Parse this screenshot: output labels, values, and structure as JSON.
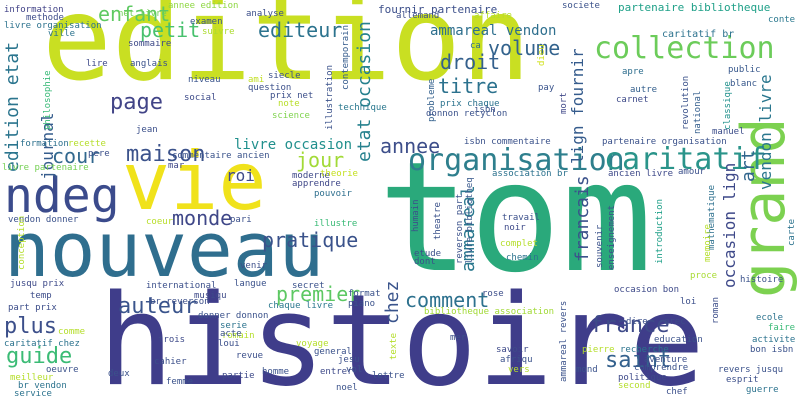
{
  "words": [
    {
      "text": "edition",
      "color": "#c9df22"
    },
    {
      "text": "tom",
      "color": "#2aa97b"
    },
    {
      "text": "histoire",
      "color": "#3f3d8a"
    },
    {
      "text": "nouveau",
      "color": "#2f6e8e"
    },
    {
      "text": "vie",
      "color": "#f0e21b"
    },
    {
      "text": "grand",
      "color": "#7cd150"
    },
    {
      "text": "ndeg",
      "color": "#3b4b8c"
    },
    {
      "text": "organisation",
      "color": "#2e7f8d"
    },
    {
      "text": "caritatif",
      "color": "#2a948a"
    },
    {
      "text": "collection",
      "color": "#6ccc5a"
    },
    {
      "text": "page",
      "color": "#414487"
    },
    {
      "text": "maison",
      "color": "#3b528b"
    },
    {
      "text": "france",
      "color": "#3e4a89"
    },
    {
      "text": "saint",
      "color": "#34618d"
    },
    {
      "text": "auteur",
      "color": "#3a548c"
    },
    {
      "text": "plus",
      "color": "#3c4f8a"
    },
    {
      "text": "guide",
      "color": "#3bbb75"
    },
    {
      "text": "monde",
      "color": "#3f4788"
    },
    {
      "text": "pratique",
      "color": "#3a528b"
    },
    {
      "text": "comment",
      "color": "#2d718e"
    },
    {
      "text": "premier",
      "color": "#5dc863"
    },
    {
      "text": "enfant",
      "color": "#5ec962"
    },
    {
      "text": "petit",
      "color": "#48c16e"
    },
    {
      "text": "editeur",
      "color": "#2c738e"
    },
    {
      "text": "titre",
      "color": "#2c728e"
    },
    {
      "text": "volume",
      "color": "#33638d"
    },
    {
      "text": "droit",
      "color": "#34608d"
    },
    {
      "text": "annee",
      "color": "#3d4e8a"
    },
    {
      "text": "jour",
      "color": "#a2da37"
    },
    {
      "text": "cour",
      "color": "#31688e"
    },
    {
      "text": "chez",
      "color": "#3a548c"
    },
    {
      "text": "ammareal vendon",
      "color": "#2e6f8e"
    },
    {
      "text": "ammareal",
      "color": "#2a788e"
    },
    {
      "text": "francais",
      "color": "#3b528b"
    },
    {
      "text": "art",
      "color": "#31668e"
    },
    {
      "text": "edition etat",
      "color": "#2b758e"
    },
    {
      "text": "etat occasion",
      "color": "#26818e"
    },
    {
      "text": "livre occasion",
      "color": "#21908d"
    },
    {
      "text": "vendon livre",
      "color": "#2a778e"
    },
    {
      "text": "lign fournir",
      "color": "#365c8d"
    },
    {
      "text": "occasion lign",
      "color": "#3e4989"
    },
    {
      "text": "journal",
      "color": "#365d8d"
    },
    {
      "text": "roi",
      "color": "#3e4a89"
    },
    {
      "text": "fournir partenaire",
      "color": "#3c4f8a"
    },
    {
      "text": "partenaire bibliotheque",
      "color": "#1fa088"
    },
    {
      "text": "caritatif br",
      "color": "#2c728e"
    },
    {
      "text": "livre partenaire",
      "color": "#75d054"
    },
    {
      "text": "information",
      "color": "#414287"
    },
    {
      "text": "methode",
      "color": "#3e4c8a"
    },
    {
      "text": "livre organisation",
      "color": "#2c728e"
    },
    {
      "text": "ville",
      "color": "#2c738e"
    },
    {
      "text": "annee edition",
      "color": "#8fd744"
    },
    {
      "text": "net livre",
      "color": "#70cf57"
    },
    {
      "text": "examen",
      "color": "#3a548c"
    },
    {
      "text": "suivre",
      "color": "#addc30"
    },
    {
      "text": "sommaire",
      "color": "#3e4a89"
    },
    {
      "text": "analyse",
      "color": "#3c4f8a"
    },
    {
      "text": "contemporain",
      "color": "#365c8d"
    },
    {
      "text": "allemand",
      "color": "#3d4e8a"
    },
    {
      "text": "affaire",
      "color": "#b5de2b"
    },
    {
      "text": "ca",
      "color": "#2e6e8e"
    },
    {
      "text": "dieu",
      "color": "#d0e11c"
    },
    {
      "text": "societe",
      "color": "#3b528b"
    },
    {
      "text": "conte",
      "color": "#2a788e"
    },
    {
      "text": "lire",
      "color": "#3e4a89"
    },
    {
      "text": "anglais",
      "color": "#3b528b"
    },
    {
      "text": "niveau",
      "color": "#3a548c"
    },
    {
      "text": "social",
      "color": "#3e4c8a"
    },
    {
      "text": "ami",
      "color": "#c2df23"
    },
    {
      "text": "siecle",
      "color": "#3c508b"
    },
    {
      "text": "illustration",
      "color": "#3b528b"
    },
    {
      "text": "prix net",
      "color": "#3c4f8a"
    },
    {
      "text": "question",
      "color": "#3c508b"
    },
    {
      "text": "note",
      "color": "#b8de29"
    },
    {
      "text": "science",
      "color": "#7fd34e"
    },
    {
      "text": "technique",
      "color": "#2a788e"
    },
    {
      "text": "probleme",
      "color": "#34618d"
    },
    {
      "text": "prix chaque",
      "color": "#2c738e"
    },
    {
      "text": "donnon recyclon",
      "color": "#3b528b"
    },
    {
      "text": "pay",
      "color": "#3a548c"
    },
    {
      "text": "mort",
      "color": "#3f4788"
    },
    {
      "text": "apre",
      "color": "#2e6e8e"
    },
    {
      "text": "autre",
      "color": "#35608d"
    },
    {
      "text": "carnet",
      "color": "#3e4a89"
    },
    {
      "text": "public",
      "color": "#38588c"
    },
    {
      "text": "blanc",
      "color": "#38588c"
    },
    {
      "text": "revolution",
      "color": "#3b528b"
    },
    {
      "text": "national",
      "color": "#345e8d"
    },
    {
      "text": "mathematique",
      "color": "#2d708e"
    },
    {
      "text": "classique",
      "color": "#21918c"
    },
    {
      "text": "philosophie",
      "color": "#38b977"
    },
    {
      "text": "jean",
      "color": "#3c508b"
    },
    {
      "text": "formation",
      "color": "#2d718e"
    },
    {
      "text": "recette",
      "color": "#b5de2b"
    },
    {
      "text": "pere",
      "color": "#3c4f8a"
    },
    {
      "text": "commentaire ancien",
      "color": "#3a538b"
    },
    {
      "text": "isbn",
      "color": "#3b528b"
    },
    {
      "text": "isbn commentaire",
      "color": "#3b528b"
    },
    {
      "text": "partenaire organisation",
      "color": "#3b528b"
    },
    {
      "text": "ancien livre",
      "color": "#3e4989"
    },
    {
      "text": "association br",
      "color": "#2c728e"
    },
    {
      "text": "manuel",
      "color": "#3d4e8a"
    },
    {
      "text": "amour",
      "color": "#3c508b"
    },
    {
      "text": "mar",
      "color": "#3f4788"
    },
    {
      "text": "moderne",
      "color": "#3e4989"
    },
    {
      "text": "apprendre",
      "color": "#3f4788"
    },
    {
      "text": "theorie",
      "color": "#c5e021"
    },
    {
      "text": "pouvoir",
      "color": "#2e6f8e"
    },
    {
      "text": "illustre",
      "color": "#3aba76"
    },
    {
      "text": "coeur",
      "color": "#b8de29"
    },
    {
      "text": "pari",
      "color": "#3c508b"
    },
    {
      "text": "vendon donner",
      "color": "#3b528b"
    },
    {
      "text": "conception",
      "color": "#b5de2b"
    },
    {
      "text": "jusqu prix",
      "color": "#3e4a89"
    },
    {
      "text": "part prix",
      "color": "#3d4e8a"
    },
    {
      "text": "temp",
      "color": "#3d4d8a"
    },
    {
      "text": "venir",
      "color": "#3c4f8a"
    },
    {
      "text": "international",
      "color": "#3c508b"
    },
    {
      "text": "langue",
      "color": "#3b528b"
    },
    {
      "text": "secret",
      "color": "#3b528b"
    },
    {
      "text": "musiqu",
      "color": "#3e4a89"
    },
    {
      "text": "br reverson",
      "color": "#3c4f8a"
    },
    {
      "text": "chaque livre",
      "color": "#2a778e"
    },
    {
      "text": "piano",
      "color": "#3b528b"
    },
    {
      "text": "format",
      "color": "#3b528b"
    },
    {
      "text": "rose",
      "color": "#3d4e8a"
    },
    {
      "text": "reverson part",
      "color": "#3b528b"
    },
    {
      "text": "livre bibliotheq",
      "color": "#38588c"
    },
    {
      "text": "theatre",
      "color": "#3b528b"
    },
    {
      "text": "humain",
      "color": "#3b528b"
    },
    {
      "text": "travail",
      "color": "#3c508b"
    },
    {
      "text": "noir",
      "color": "#3e4a89"
    },
    {
      "text": "etude",
      "color": "#3c508b"
    },
    {
      "text": "dont",
      "color": "#3b528b"
    },
    {
      "text": "complet",
      "color": "#b5de2b"
    },
    {
      "text": "chemin",
      "color": "#2c738e"
    },
    {
      "text": "souvenir",
      "color": "#3b528b"
    },
    {
      "text": "enseignement",
      "color": "#3c508b"
    },
    {
      "text": "introduction",
      "color": "#1fa088"
    },
    {
      "text": "memoire",
      "color": "#b5de2b"
    },
    {
      "text": "proce",
      "color": "#a8db34"
    },
    {
      "text": "carte",
      "color": "#2c738e"
    },
    {
      "text": "occasion bon",
      "color": "#3e4a89"
    },
    {
      "text": "roman",
      "color": "#3d4e8a"
    },
    {
      "text": "histoire",
      "color": "#3b528b"
    },
    {
      "text": "loi",
      "color": "#3c4f8a"
    },
    {
      "text": "bibliotheque association",
      "color": "#a2da37"
    },
    {
      "text": "grec",
      "color": "#3e4a89"
    },
    {
      "text": "ecole",
      "color": "#2c738e"
    },
    {
      "text": "faire",
      "color": "#3aba76"
    },
    {
      "text": "activite",
      "color": "#2c738e"
    },
    {
      "text": "bon isbn",
      "color": "#3b528b"
    },
    {
      "text": "dire",
      "color": "#3c508b"
    },
    {
      "text": "education",
      "color": "#3b528b"
    },
    {
      "text": "recherche",
      "color": "#2c738e"
    },
    {
      "text": "aventure",
      "color": "#3c4f8a"
    },
    {
      "text": "comprendre",
      "color": "#3b528b"
    },
    {
      "text": "politique",
      "color": "#3e4a89"
    },
    {
      "text": "revers jusqu",
      "color": "#3b528b"
    },
    {
      "text": "esprit",
      "color": "#3c4f8a"
    },
    {
      "text": "chef",
      "color": "#3c508b"
    },
    {
      "text": "guerre",
      "color": "#2c738e"
    },
    {
      "text": "pierre",
      "color": "#b5de2b"
    },
    {
      "text": "mond",
      "color": "#3b528b"
    },
    {
      "text": "second",
      "color": "#b5de2b"
    },
    {
      "text": "ammareal revers",
      "color": "#3b528b"
    },
    {
      "text": "savoir",
      "color": "#3e4a89"
    },
    {
      "text": "afriqu",
      "color": "#3b528b"
    },
    {
      "text": "vers",
      "color": "#b5de2b"
    },
    {
      "text": "mer",
      "color": "#3c508b"
    },
    {
      "text": "texte",
      "color": "#b5de2b"
    },
    {
      "text": "lettre",
      "color": "#3b528b"
    },
    {
      "text": "entrer",
      "color": "#3e4a89"
    },
    {
      "text": "noel",
      "color": "#3b528b"
    },
    {
      "text": "jesu",
      "color": "#3c508b"
    },
    {
      "text": "vol",
      "color": "#3b528b"
    },
    {
      "text": "general",
      "color": "#3b528b"
    },
    {
      "text": "homme",
      "color": "#3b528b"
    },
    {
      "text": "partie",
      "color": "#3e4a89"
    },
    {
      "text": "voyage",
      "color": "#b5de2b"
    },
    {
      "text": "romain",
      "color": "#b5de2b"
    },
    {
      "text": "revue",
      "color": "#3c508b"
    },
    {
      "text": "femme",
      "color": "#3b528b"
    },
    {
      "text": "cahier",
      "color": "#3c4f8a"
    },
    {
      "text": "deux",
      "color": "#3b528b"
    },
    {
      "text": "trois",
      "color": "#3e4a89"
    },
    {
      "text": "acte",
      "color": "#3b528b"
    },
    {
      "text": "loui",
      "color": "#3c508b"
    },
    {
      "text": "serie",
      "color": "#2c738e"
    },
    {
      "text": "donner donnon",
      "color": "#3b528b"
    },
    {
      "text": "oeuvre",
      "color": "#3b528b"
    },
    {
      "text": "meilleur",
      "color": "#b5de2b"
    },
    {
      "text": "br vendon",
      "color": "#2c738e"
    },
    {
      "text": "service",
      "color": "#2c738e"
    },
    {
      "text": "caritatif chez",
      "color": "#2c738e"
    },
    {
      "text": "comme",
      "color": "#b5de2b"
    }
  ]
}
